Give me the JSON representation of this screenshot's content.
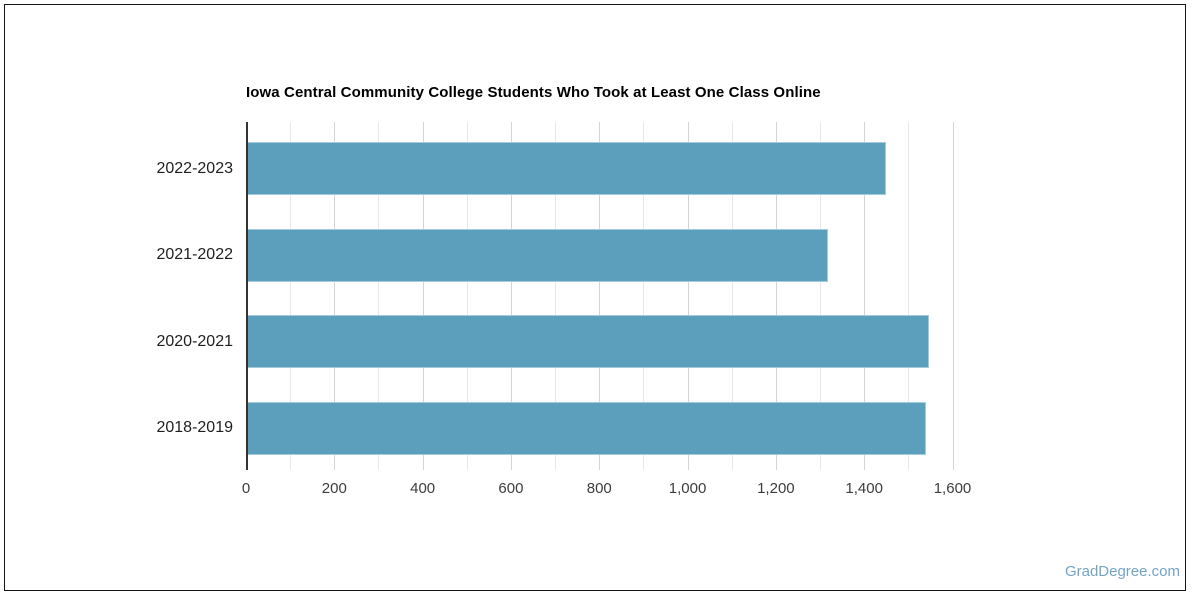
{
  "title": "Iowa Central Community College Students Who Took at Least One Class Online",
  "watermark": "GradDegree.com",
  "colors": {
    "bar_fill": "#5B9FBC",
    "bar_border": "#A3CBDC",
    "grid_minor": "#E8E8E8",
    "grid_major": "#D4D4D4",
    "axis_line": "#333333",
    "title_text": "#000000",
    "tick_text": "#3D3D3D",
    "category_text": "#1F1F1F",
    "watermark_text": "#74A4C4",
    "frame_border": "#141414"
  },
  "chart_data": {
    "type": "bar",
    "orientation": "horizontal",
    "title": "Iowa Central Community College Students Who Took at Least One Class Online",
    "categories": [
      "2022-2023",
      "2021-2022",
      "2020-2021",
      "2018-2019"
    ],
    "values": [
      1448,
      1316,
      1544,
      1537
    ],
    "series": [
      {
        "name": "Students Who Took at Least One Class Online",
        "values": [
          1448,
          1316,
          1544,
          1537
        ]
      }
    ],
    "xlabel": "",
    "ylabel": "",
    "xlim": [
      0,
      1600
    ],
    "x_major_ticks": [
      0,
      200,
      400,
      600,
      800,
      1000,
      1200,
      1400,
      1600
    ],
    "x_tick_labels": [
      "0",
      "200",
      "400",
      "600",
      "800",
      "1,000",
      "1,200",
      "1,400",
      "1,600"
    ],
    "x_minor_grid_step": 100,
    "grid": "vertical, minor every 100, major every 200",
    "legend": "none",
    "bar_color": "#5B9FBC"
  }
}
